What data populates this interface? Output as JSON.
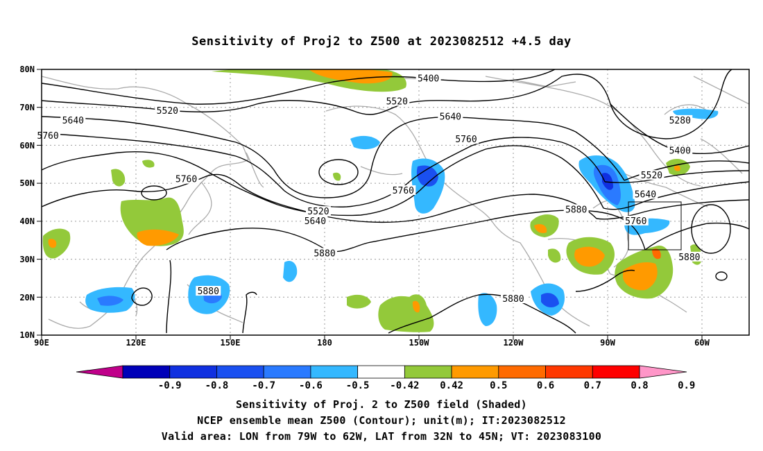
{
  "title": "Sensitivity of Proj2 to Z500 at 2023082512 +4.5 day",
  "axes": {
    "lat_labels": [
      "80N",
      "70N",
      "60N",
      "50N",
      "40N",
      "30N",
      "20N",
      "10N"
    ],
    "lon_labels": [
      "90E",
      "120E",
      "150E",
      "180",
      "150W",
      "120W",
      "90W",
      "60W"
    ]
  },
  "contour_labels": [
    {
      "text": "5400",
      "lon_deg": -147,
      "lat_deg": 77.5
    },
    {
      "text": "5520",
      "lon_deg": -230,
      "lat_deg": 69
    },
    {
      "text": "5520",
      "lon_deg": -157,
      "lat_deg": 71.5
    },
    {
      "text": "5640",
      "lon_deg": -260,
      "lat_deg": 66.5
    },
    {
      "text": "5760",
      "lon_deg": -268,
      "lat_deg": 62.5
    },
    {
      "text": "5640",
      "lon_deg": -140,
      "lat_deg": 67.5
    },
    {
      "text": "5760",
      "lon_deg": -135,
      "lat_deg": 61.5
    },
    {
      "text": "5760",
      "lon_deg": -224,
      "lat_deg": 51
    },
    {
      "text": "5520",
      "lon_deg": -182,
      "lat_deg": 42.5
    },
    {
      "text": "5640",
      "lon_deg": -183,
      "lat_deg": 40
    },
    {
      "text": "5760",
      "lon_deg": -155,
      "lat_deg": 48
    },
    {
      "text": "5880",
      "lon_deg": -180,
      "lat_deg": 31.5
    },
    {
      "text": "5880",
      "lon_deg": -100,
      "lat_deg": 43
    },
    {
      "text": "5280",
      "lon_deg": -67,
      "lat_deg": 66.5
    },
    {
      "text": "5400",
      "lon_deg": -67,
      "lat_deg": 58.5
    },
    {
      "text": "5520",
      "lon_deg": -76,
      "lat_deg": 52
    },
    {
      "text": "5640",
      "lon_deg": -78,
      "lat_deg": 47
    },
    {
      "text": "5760",
      "lon_deg": -81,
      "lat_deg": 40
    },
    {
      "text": "5880",
      "lon_deg": -64,
      "lat_deg": 30.5
    },
    {
      "text": "5880",
      "lon_deg": -217,
      "lat_deg": 21.5
    },
    {
      "text": "5880",
      "lon_deg": -120,
      "lat_deg": 19.5
    }
  ],
  "colorbar": {
    "labels": [
      "-0.9",
      "-0.8",
      "-0.7",
      "-0.6",
      "-0.5",
      "-0.42",
      "0.42",
      "0.5",
      "0.6",
      "0.7",
      "0.8",
      "0.9"
    ],
    "colors": [
      "#a0007c",
      "#0000b8",
      "#1030e0",
      "#1a50f0",
      "#2a7aff",
      "#34b8ff",
      "#ffffff",
      "#93c93a",
      "#ff9a00",
      "#ff6a00",
      "#ff3800",
      "#ff0000",
      "#ff96c8"
    ],
    "low_arrow_color": "#c0008a",
    "high_arrow_color": "#ff96c8"
  },
  "captions": {
    "line1": "Sensitivity of Proj. 2 to Z500 field (Shaded)",
    "line2": "NCEP ensemble mean Z500 (Contour); unit(m); IT:2023082512",
    "line3": "Valid area: LON from 79W to 62W, LAT from 32N to 45N; VT: 2023083100"
  },
  "valid_area": {
    "lon_min": -79,
    "lon_max": -62,
    "lat_min": 32,
    "lat_max": 45
  },
  "map_extent": {
    "lon_min": 90,
    "lon_max": 315,
    "lat_min": 10,
    "lat_max": 80
  }
}
